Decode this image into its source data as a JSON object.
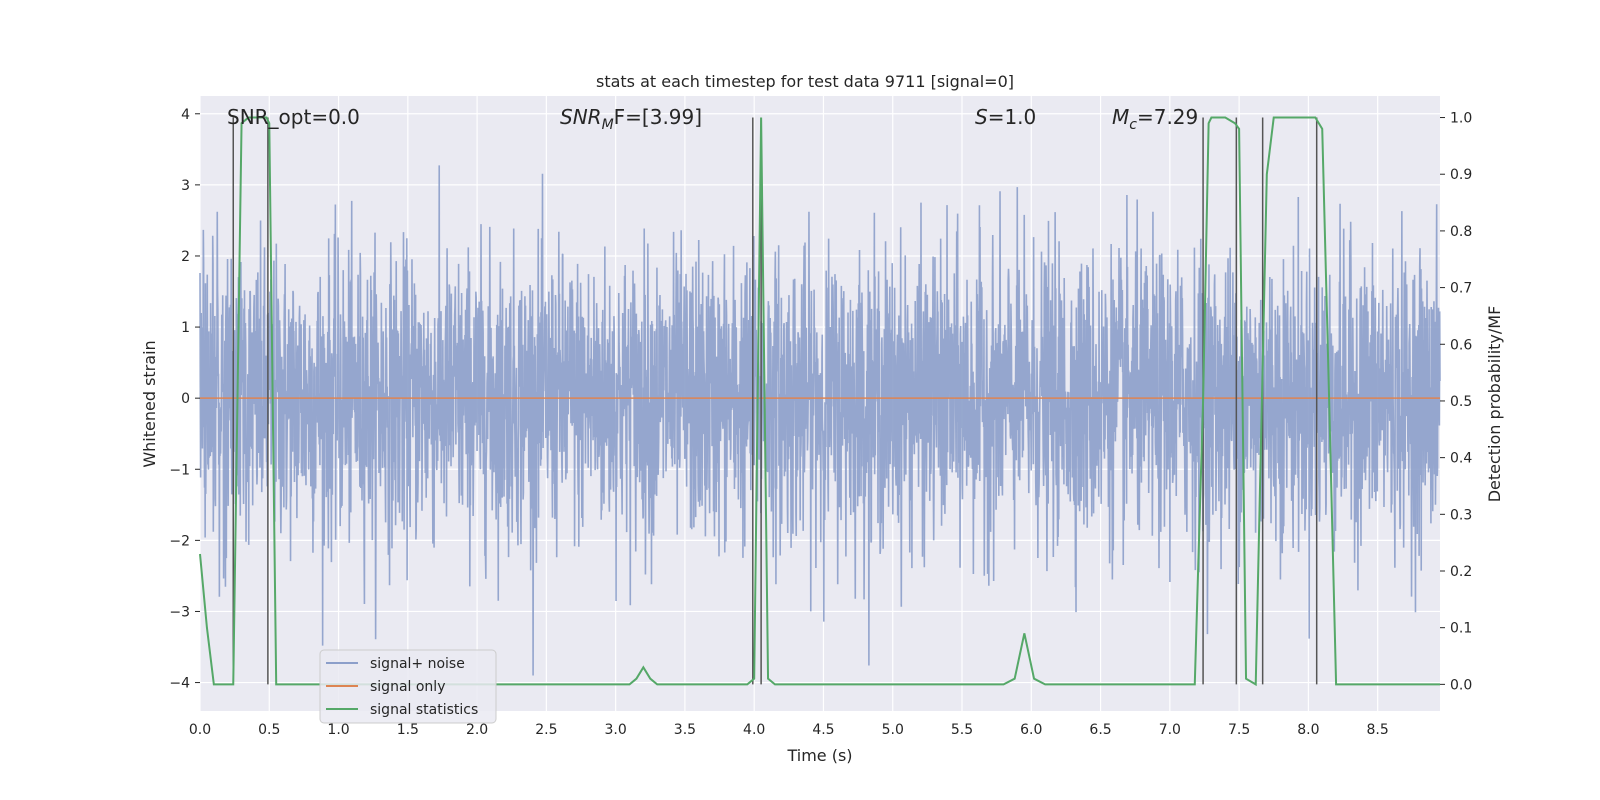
{
  "chart_data": {
    "type": "line",
    "title": "stats at each timestep for test data 9711 [signal=0]",
    "xlabel": "Time (s)",
    "ylabel_left": "Whitened strain",
    "ylabel_right": "Detection probability/MF",
    "xlim": [
      0,
      8.95
    ],
    "ylim_left": [
      -4.4,
      4.25
    ],
    "ylim_right": [
      -0.047,
      1.038
    ],
    "x_ticks": [
      "0.0",
      "0.5",
      "1.0",
      "1.5",
      "2.0",
      "2.5",
      "3.0",
      "3.5",
      "4.0",
      "4.5",
      "5.0",
      "5.5",
      "6.0",
      "6.5",
      "7.0",
      "7.5",
      "8.0",
      "8.5"
    ],
    "y_ticks_left": [
      "−4",
      "−3",
      "−2",
      "−1",
      "0",
      "1",
      "2",
      "3",
      "4"
    ],
    "y_ticks_right": [
      "0.0",
      "0.1",
      "0.2",
      "0.3",
      "0.4",
      "0.5",
      "0.6",
      "0.7",
      "0.8",
      "0.9",
      "1.0"
    ],
    "grid": true,
    "legend_position": "lower-left",
    "annotations": {
      "snr_opt": "SNR_opt=0.0",
      "snr_mf_main": "SNR",
      "snr_mf_sub": "M",
      "snr_mf_rest": "F=[3.99]",
      "s_main": "S",
      "s_rest": "=1.0",
      "mc_main": "M",
      "mc_sub": "c",
      "mc_rest": "=7.29"
    },
    "series": [
      {
        "name": "signal+ noise",
        "axis": "left",
        "color": "#8c9fca",
        "style": "dense noise trace, approx. Gaussian, envelope roughly ±2.3 with spikes to ±3.9",
        "noise_sigma": 1.0,
        "n_samples": 4096
      },
      {
        "name": "signal only",
        "axis": "left",
        "color": "#dd8452",
        "x": [
          0,
          8.95
        ],
        "y": [
          0,
          0
        ]
      },
      {
        "name": "signal statistics",
        "axis": "right",
        "color": "#55a868",
        "x": [
          0.0,
          0.05,
          0.1,
          0.15,
          0.24,
          0.3,
          0.35,
          0.4,
          0.48,
          0.5,
          0.55,
          0.6,
          0.65,
          0.75,
          0.8,
          1.0,
          3.1,
          3.15,
          3.2,
          3.25,
          3.3,
          3.4,
          3.95,
          4.0,
          4.05,
          4.1,
          4.15,
          4.2,
          5.8,
          5.88,
          5.95,
          6.02,
          6.1,
          7.18,
          7.24,
          7.28,
          7.3,
          7.4,
          7.47,
          7.5,
          7.55,
          7.62,
          7.7,
          7.75,
          8.05,
          8.1,
          8.15,
          8.2,
          8.3,
          8.95
        ],
        "y": [
          0.23,
          0.1,
          0.0,
          0.0,
          0.0,
          0.99,
          1.0,
          1.0,
          1.0,
          0.99,
          0.0,
          0.0,
          0.0,
          0.0,
          0.0,
          0.0,
          0.0,
          0.01,
          0.03,
          0.01,
          0.0,
          0.0,
          0.0,
          0.01,
          1.0,
          0.01,
          0.0,
          0.0,
          0.0,
          0.01,
          0.09,
          0.01,
          0.0,
          0.0,
          0.5,
          0.99,
          1.0,
          1.0,
          0.99,
          0.98,
          0.01,
          0.0,
          0.9,
          1.0,
          1.0,
          0.98,
          0.5,
          0.0,
          0.0,
          0.0
        ]
      }
    ],
    "vertical_lines_x": [
      0.24,
      0.49,
      3.99,
      4.05,
      7.24,
      7.48,
      7.67,
      8.06
    ]
  }
}
